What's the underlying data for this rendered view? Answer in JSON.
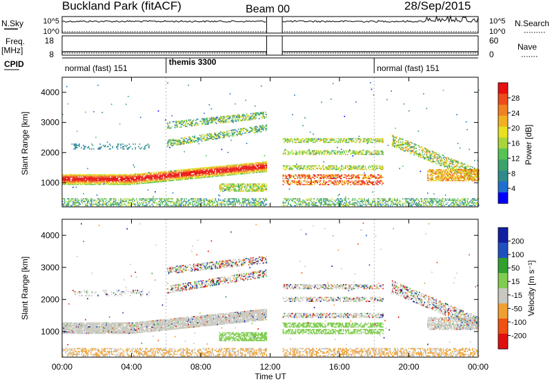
{
  "header": {
    "title": "Buckland Park (fitACF)",
    "beam": "Beam 00",
    "date": "28/Sep/2015"
  },
  "status_panels": {
    "nsky_label": "N.Sky",
    "nsky_ticks": [
      "10^5",
      "10^0"
    ],
    "nsearch_label": "N.Search",
    "nsearch_ticks": [
      "10^5",
      "10^0"
    ],
    "freq_label": "Freq.",
    "freq_unit": "[MHz]",
    "freq_ticks": [
      "18",
      "8"
    ],
    "nave_label": "Nave",
    "nave_ticks": [
      "60",
      "0"
    ],
    "cpid_label": "CPID",
    "cpid_segments": [
      {
        "label": "normal (fast) 151",
        "start_hour": 0,
        "end_hour": 6
      },
      {
        "label": "themis 3300",
        "start_hour": 6,
        "end_hour": 18
      },
      {
        "label": "normal (fast) 151",
        "start_hour": 18,
        "end_hour": 24
      }
    ]
  },
  "chart_data": [
    {
      "type": "heatmap",
      "name": "power",
      "ylabel": "Slant Range [km]",
      "yticks": [
        "1000",
        "2000",
        "3000",
        "4000"
      ],
      "ylim": [
        200,
        4500
      ],
      "xlim": [
        0,
        24
      ],
      "data_gap_hours": [
        11.8,
        12.7
      ],
      "colorbar_label": "Power [dB]",
      "colorbar_ticks": [
        "28",
        "24",
        "20",
        "16",
        "12",
        "8",
        "4"
      ],
      "colorbar_range": [
        0,
        30
      ],
      "colors": [
        "#0000ff",
        "#1f6fd0",
        "#2e8b8b",
        "#3aa36b",
        "#55c455",
        "#a8d63a",
        "#e8e020",
        "#f0b020",
        "#f08020",
        "#ee4a1a",
        "#e81010"
      ]
    },
    {
      "type": "heatmap",
      "name": "velocity",
      "ylabel": "Slant Range [km]",
      "yticks": [
        "1000",
        "2000",
        "3000",
        "4000"
      ],
      "ylim": [
        200,
        4500
      ],
      "xlim": [
        0,
        24
      ],
      "data_gap_hours": [
        11.8,
        12.7
      ],
      "colorbar_label": "Velocity [m s⁻¹]",
      "colorbar_ticks": [
        "200",
        "100",
        "50",
        "15",
        "-15",
        "-50",
        "-100",
        "-200"
      ],
      "colorbar_range": [
        -250,
        250
      ],
      "colors": [
        "#e01010",
        "#f05010",
        "#f0a030",
        "#c8c8c0",
        "#80cc50",
        "#30a030",
        "#2050c0",
        "#1020a0"
      ]
    }
  ],
  "x_axis": {
    "label": "Time UT",
    "ticks": [
      "00:00",
      "04:00",
      "08:00",
      "12:00",
      "16:00",
      "20:00",
      "00:00"
    ],
    "tick_hours": [
      0,
      4,
      8,
      12,
      16,
      20,
      24
    ]
  }
}
